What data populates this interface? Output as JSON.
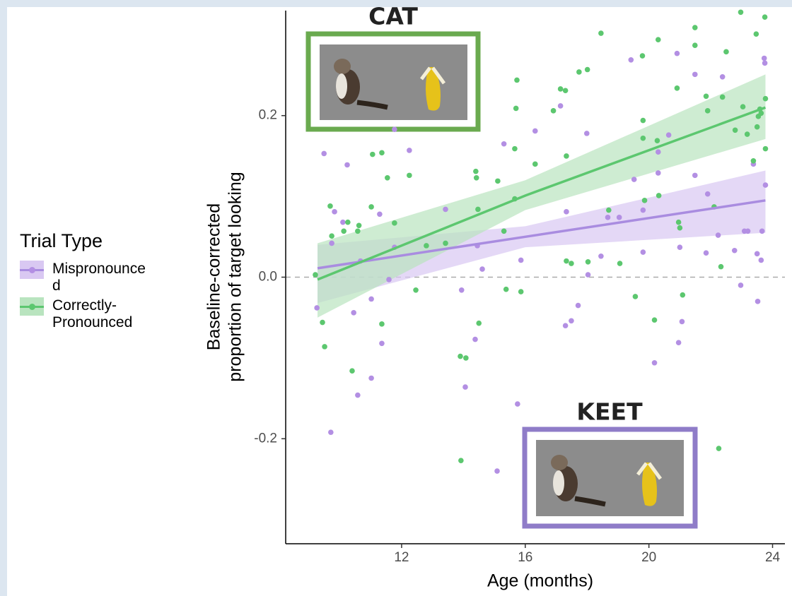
{
  "chart_data": {
    "type": "scatter",
    "x_label": "Age (months)",
    "y_label": [
      "Baseline-corrected",
      "proportion of target looking"
    ],
    "xlim": [
      8.25,
      24.4
    ],
    "ylim": [
      -0.33,
      0.33
    ],
    "xticks": [
      12,
      16,
      20,
      24
    ],
    "yticks": [
      -0.2,
      {
        "value": 0,
        "label": "0.0"
      },
      0.2
    ],
    "reference_line": 0,
    "legend_title": "Trial Type",
    "legend_position": "left",
    "annotations": [
      {
        "text": "CAT",
        "color": "#222222"
      },
      {
        "text": "KEET",
        "color": "#222222"
      }
    ],
    "series": [
      {
        "name": "Mispronounced",
        "color": "#b38fe3",
        "line_color": "#a98ce0",
        "ribbon_color": "#d9c8f2",
        "x": [
          9.26,
          9.49,
          9.71,
          9.74,
          9.83,
          10.1,
          10.24,
          10.45,
          10.58,
          10.67,
          11.02,
          11.02,
          11.29,
          11.36,
          11.59,
          11.77,
          11.77,
          12.25,
          13.42,
          13.94,
          14.06,
          14.38,
          14.45,
          14.61,
          15.09,
          15.31,
          15.75,
          15.86,
          16.32,
          17.14,
          17.3,
          17.33,
          17.49,
          17.71,
          17.99,
          18.03,
          18.45,
          18.67,
          19.04,
          19.42,
          19.52,
          19.81,
          19.81,
          20.18,
          20.3,
          20.3,
          20.64,
          20.91,
          20.96,
          21.0,
          21.07,
          21.49,
          21.49,
          21.85,
          21.9,
          22.24,
          22.38,
          22.77,
          22.97,
          23.09,
          23.2,
          23.38,
          23.5,
          23.52,
          23.63,
          23.66,
          23.73,
          23.75,
          23.77
        ],
        "values": [
          -0.038,
          0.153,
          -0.192,
          0.042,
          0.081,
          0.068,
          0.139,
          -0.044,
          -0.146,
          0.02,
          -0.125,
          -0.027,
          0.078,
          -0.082,
          -0.003,
          0.183,
          0.037,
          0.157,
          0.084,
          -0.016,
          -0.136,
          -0.077,
          0.039,
          0.01,
          -0.24,
          0.165,
          -0.157,
          0.021,
          0.181,
          0.212,
          -0.06,
          0.081,
          -0.054,
          -0.035,
          0.178,
          0.003,
          0.026,
          0.074,
          0.074,
          0.269,
          0.121,
          0.083,
          0.031,
          -0.106,
          0.155,
          0.129,
          0.176,
          0.277,
          -0.081,
          0.037,
          -0.055,
          0.251,
          0.126,
          0.03,
          0.103,
          0.052,
          0.248,
          0.033,
          -0.01,
          0.057,
          0.057,
          0.14,
          0.029,
          -0.03,
          0.021,
          0.057,
          0.271,
          0.265,
          0.114
        ],
        "fit": {
          "x": [
            9.28,
            16,
            23.77
          ],
          "values": [
            0.011,
            0.05,
            0.095
          ],
          "lower": [
            -0.032,
            0.037,
            0.055
          ],
          "upper": [
            0.04,
            0.063,
            0.132
          ]
        }
      },
      {
        "name": "Correctly-Pronounced",
        "color": "#5cc76f",
        "line_color": "#5cc76f",
        "ribbon_color": "#b9e4bf",
        "x": [
          9.21,
          9.44,
          9.51,
          9.69,
          9.74,
          10.13,
          10.26,
          10.4,
          10.58,
          10.62,
          11.02,
          11.06,
          11.36,
          11.36,
          11.54,
          11.77,
          12.25,
          12.46,
          12.8,
          13.42,
          13.9,
          13.92,
          14.08,
          14.4,
          14.42,
          14.5,
          14.47,
          15.11,
          15.31,
          15.38,
          15.66,
          15.66,
          15.7,
          15.73,
          15.86,
          16.32,
          16.91,
          17.14,
          17.3,
          17.33,
          17.33,
          17.49,
          17.74,
          18.01,
          18.03,
          18.45,
          18.7,
          19.06,
          19.56,
          19.79,
          19.81,
          19.81,
          19.86,
          20.18,
          20.27,
          20.3,
          20.32,
          20.91,
          20.96,
          21.0,
          21.09,
          21.49,
          21.49,
          21.85,
          21.9,
          22.11,
          22.26,
          22.33,
          22.38,
          22.5,
          22.79,
          22.97,
          23.04,
          23.18,
          23.38,
          23.47,
          23.5,
          23.54,
          23.59,
          23.63,
          23.75,
          23.77,
          23.77
        ],
        "values": [
          0.003,
          -0.056,
          -0.086,
          0.088,
          0.051,
          0.057,
          0.068,
          -0.116,
          0.057,
          0.064,
          0.087,
          0.152,
          0.154,
          -0.058,
          0.123,
          0.067,
          0.126,
          -0.016,
          0.039,
          0.042,
          -0.098,
          -0.227,
          -0.1,
          0.131,
          0.123,
          -0.057,
          0.084,
          0.119,
          0.057,
          -0.015,
          0.097,
          0.159,
          0.209,
          0.244,
          -0.018,
          0.14,
          0.206,
          0.233,
          0.231,
          0.15,
          0.02,
          0.017,
          0.254,
          0.257,
          0.019,
          0.302,
          0.083,
          0.017,
          -0.024,
          0.274,
          0.194,
          0.172,
          0.095,
          -0.053,
          0.169,
          0.294,
          0.101,
          0.234,
          0.068,
          0.061,
          -0.022,
          0.309,
          0.287,
          0.224,
          0.206,
          0.087,
          -0.212,
          0.013,
          0.223,
          0.279,
          0.182,
          0.328,
          0.211,
          0.177,
          0.144,
          0.301,
          0.186,
          0.199,
          0.208,
          0.203,
          0.322,
          0.221,
          0.159
        ],
        "fit": {
          "x": [
            9.28,
            16,
            23.77
          ],
          "values": [
            -0.003,
            0.101,
            0.21
          ],
          "lower": [
            -0.05,
            0.083,
            0.171
          ],
          "upper": [
            0.042,
            0.12,
            0.251
          ]
        }
      }
    ]
  }
}
